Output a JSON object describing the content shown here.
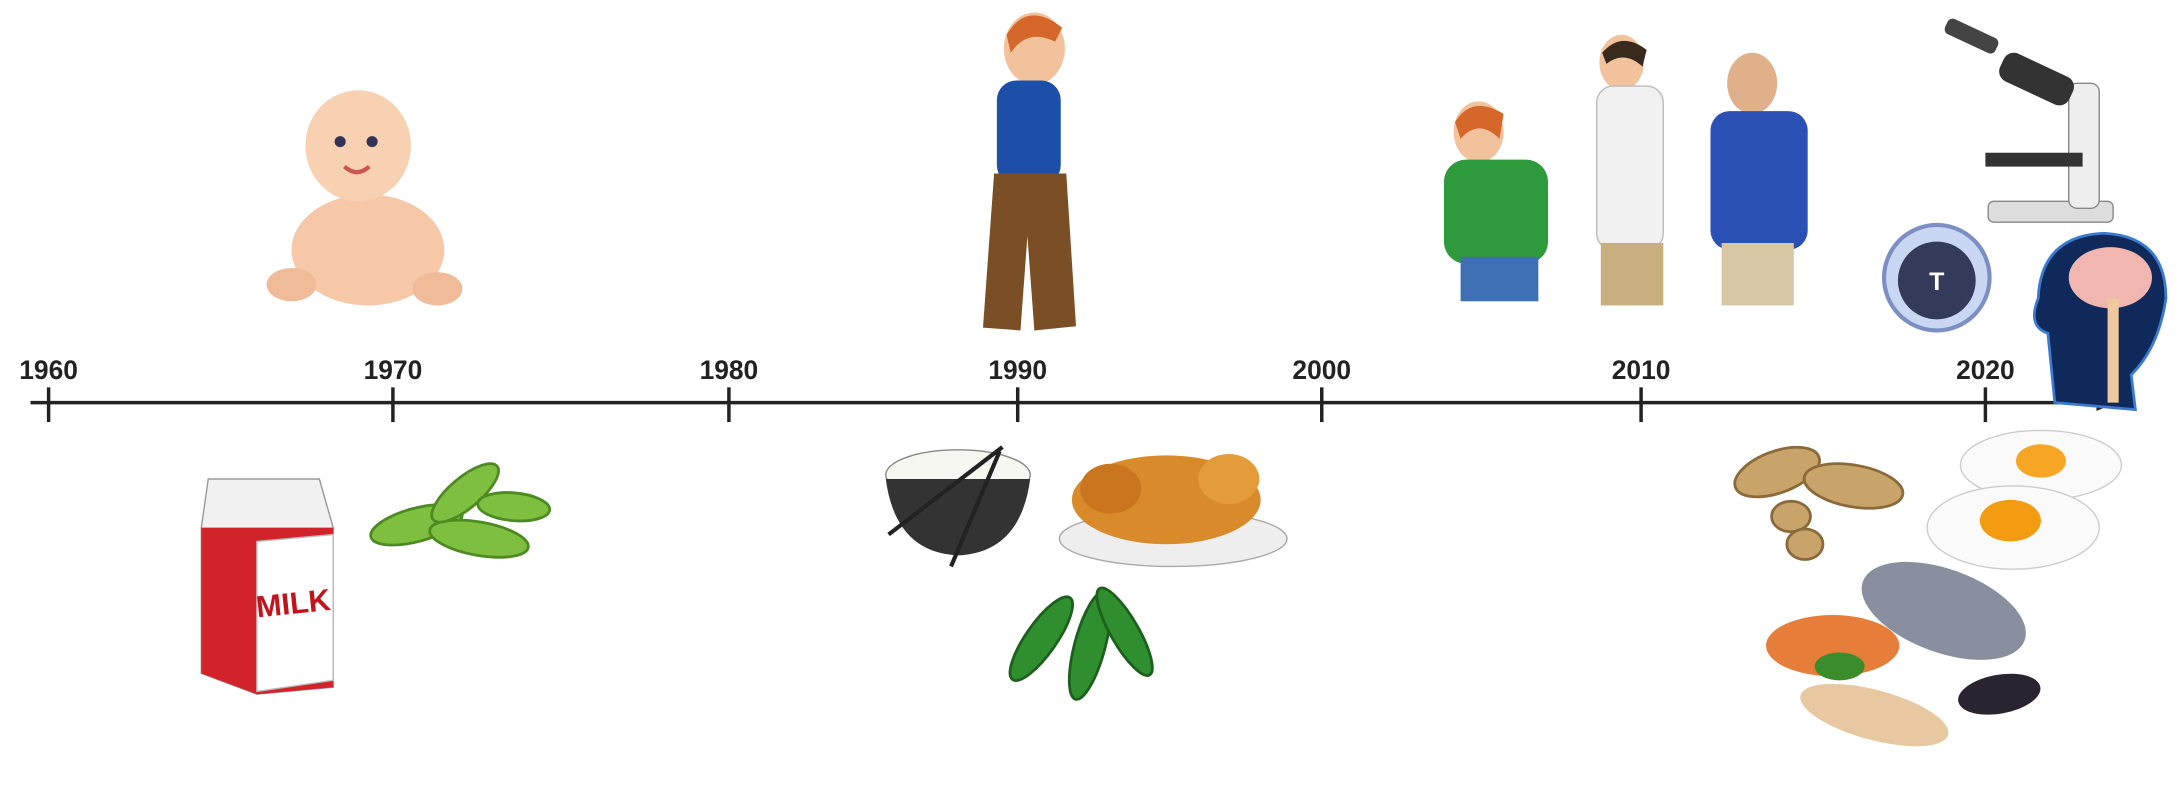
{
  "timeline": {
    "ticks": [
      "1960",
      "1970",
      "1980",
      "1990",
      "2000",
      "2010",
      "2020"
    ]
  },
  "illustrations": {
    "milk_label": "MILK",
    "tcell_label": "T"
  }
}
